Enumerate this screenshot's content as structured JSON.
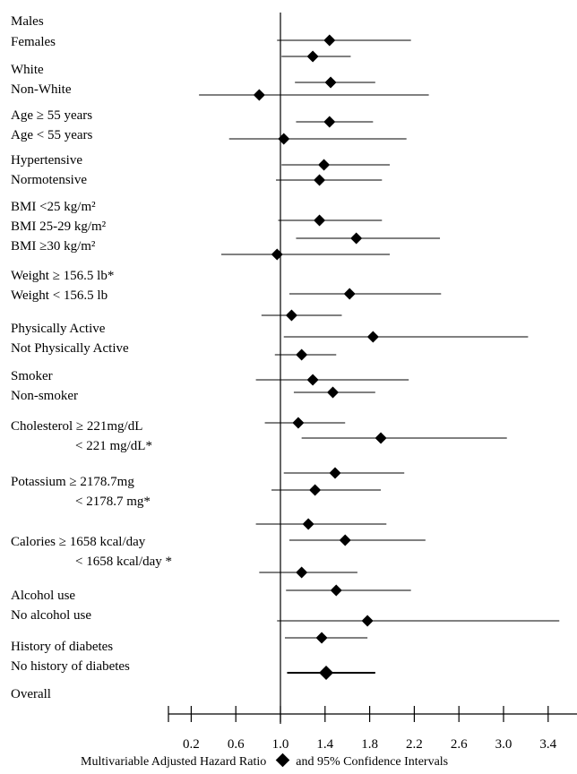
{
  "chart_data": {
    "type": "forest",
    "xlabel_left": "Multivariable Adjusted Hazard Ratio",
    "xlabel_right": "and 95% Confidence Intervals",
    "legend_marker": "diamond-icon",
    "xlim": [
      0.0,
      3.5
    ],
    "reference_line": 1.0,
    "xticks": [
      0.2,
      0.6,
      1.0,
      1.4,
      1.8,
      2.2,
      2.6,
      3.0,
      3.4
    ],
    "xtick_labels": [
      "0.2",
      "0.6",
      "1.0",
      "1.4",
      "1.8",
      "2.2",
      "2.6",
      "3.0",
      "3.4"
    ],
    "labels": [
      {
        "text": "Males",
        "indent": 0
      },
      {
        "text": "Females",
        "indent": 0
      },
      {
        "text": "White",
        "indent": 0
      },
      {
        "text": "Non-White",
        "indent": 0
      },
      {
        "text": "Age ≥ 55 years",
        "indent": 0
      },
      {
        "text": "Age < 55 years",
        "indent": 0
      },
      {
        "text": "Hypertensive",
        "indent": 0
      },
      {
        "text": "Normotensive",
        "indent": 0
      },
      {
        "text": "BMI <25 kg/m²",
        "indent": 0
      },
      {
        "text": "BMI  25-29 kg/m²",
        "indent": 0
      },
      {
        "text": "BMI  ≥30 kg/m²",
        "indent": 0
      },
      {
        "text": "Weight ≥ 156.5 lb*",
        "indent": 0
      },
      {
        "text": "Weight < 156.5 lb",
        "indent": 0
      },
      {
        "text": "Physically Active",
        "indent": 0
      },
      {
        "text": "Not Physically Active",
        "indent": 0
      },
      {
        "text": "Smoker",
        "indent": 0
      },
      {
        "text": "Non-smoker",
        "indent": 0
      },
      {
        "text": "Cholesterol ≥ 221mg/dL",
        "indent": 0
      },
      {
        "text": "< 221 mg/dL*",
        "indent": 1
      },
      {
        "text": "Potassium ≥ 2178.7mg",
        "indent": 0
      },
      {
        "text": "< 2178.7 mg*",
        "indent": 1
      },
      {
        "text": "Calories ≥ 1658 kcal/day",
        "indent": 0
      },
      {
        "text": "< 1658 kcal/day *",
        "indent": 1
      },
      {
        "text": "Alcohol use",
        "indent": 0
      },
      {
        "text": "No alcohol use",
        "indent": 0
      },
      {
        "text": "History of diabetes",
        "indent": 0
      },
      {
        "text": "No history of diabetes",
        "indent": 0
      },
      {
        "text": "Overall",
        "indent": 0
      }
    ],
    "points": [
      {
        "hr": 1.44,
        "lo": 0.97,
        "hi": 2.17
      },
      {
        "hr": 1.29,
        "lo": 1.01,
        "hi": 1.63
      },
      {
        "hr": 1.45,
        "lo": 1.13,
        "hi": 1.85
      },
      {
        "hr": 0.81,
        "lo": 0.27,
        "hi": 2.33
      },
      {
        "hr": 1.44,
        "lo": 1.14,
        "hi": 1.83
      },
      {
        "hr": 1.03,
        "lo": 0.54,
        "hi": 2.13
      },
      {
        "hr": 1.39,
        "lo": 1.01,
        "hi": 1.98
      },
      {
        "hr": 1.35,
        "lo": 0.96,
        "hi": 1.91
      },
      {
        "hr": 1.35,
        "lo": 0.98,
        "hi": 1.91
      },
      {
        "hr": 1.68,
        "lo": 1.14,
        "hi": 2.43
      },
      {
        "hr": 0.97,
        "lo": 0.47,
        "hi": 1.98
      },
      {
        "hr": 1.62,
        "lo": 1.08,
        "hi": 2.44
      },
      {
        "hr": 1.1,
        "lo": 0.83,
        "hi": 1.55
      },
      {
        "hr": 1.83,
        "lo": 1.03,
        "hi": 3.22
      },
      {
        "hr": 1.19,
        "lo": 0.95,
        "hi": 1.5
      },
      {
        "hr": 1.29,
        "lo": 0.78,
        "hi": 2.15
      },
      {
        "hr": 1.47,
        "lo": 1.12,
        "hi": 1.85
      },
      {
        "hr": 1.16,
        "lo": 0.86,
        "hi": 1.58
      },
      {
        "hr": 1.9,
        "lo": 1.19,
        "hi": 3.03
      },
      {
        "hr": 1.49,
        "lo": 1.03,
        "hi": 2.11
      },
      {
        "hr": 1.31,
        "lo": 0.92,
        "hi": 1.9
      },
      {
        "hr": 1.25,
        "lo": 0.78,
        "hi": 1.95
      },
      {
        "hr": 1.58,
        "lo": 1.08,
        "hi": 2.3
      },
      {
        "hr": 1.19,
        "lo": 0.81,
        "hi": 1.69
      },
      {
        "hr": 1.5,
        "lo": 1.05,
        "hi": 2.17
      },
      {
        "hr": 1.78,
        "lo": 0.97,
        "hi": 3.5
      },
      {
        "hr": 1.37,
        "lo": 1.04,
        "hi": 1.78
      },
      {
        "hr": 1.41,
        "lo": 1.06,
        "hi": 1.85
      }
    ]
  }
}
